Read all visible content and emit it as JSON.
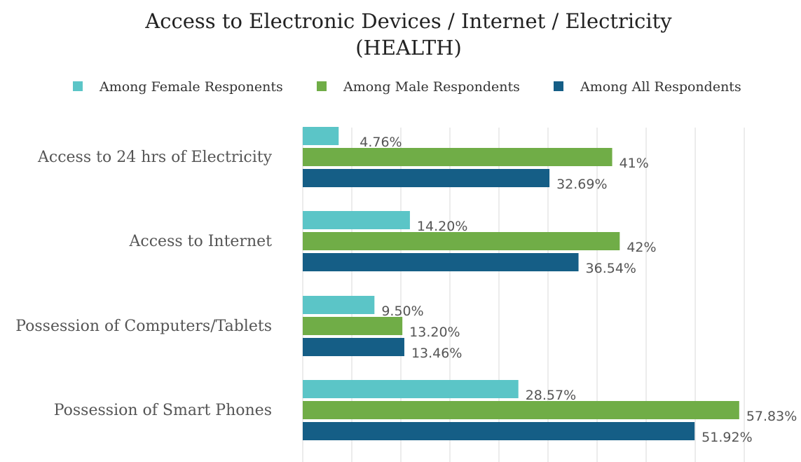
{
  "chart_data": {
    "type": "bar",
    "orientation": "horizontal",
    "title": "Access to Electronic Devices / Internet / Electricity",
    "subtitle": "(HEALTH)",
    "categories": [
      "Access to 24 hrs of Electricity",
      "Access to Internet",
      "Possession of Computers/Tablets",
      "Possession of Smart Phones"
    ],
    "series": [
      {
        "name": "Among Female Responents",
        "color": "#5bc5c7",
        "values": [
          4.76,
          14.2,
          9.5,
          28.57
        ],
        "labels": [
          "4.76%",
          "14.20%",
          "9.50%",
          "28.57%"
        ]
      },
      {
        "name": "Among Male Respondents",
        "color": "#70ad47",
        "values": [
          41,
          42,
          13.2,
          57.83
        ],
        "labels": [
          "41%",
          "42%",
          "13.20%",
          "57.83%"
        ]
      },
      {
        "name": "Among All Respondents",
        "color": "#155e86",
        "values": [
          32.69,
          36.54,
          13.46,
          51.92
        ],
        "labels": [
          "32.69%",
          "36.54%",
          "13.46%",
          "51.92%"
        ]
      }
    ],
    "xlim": [
      0,
      63
    ],
    "grid": true,
    "legend_position": "top"
  }
}
